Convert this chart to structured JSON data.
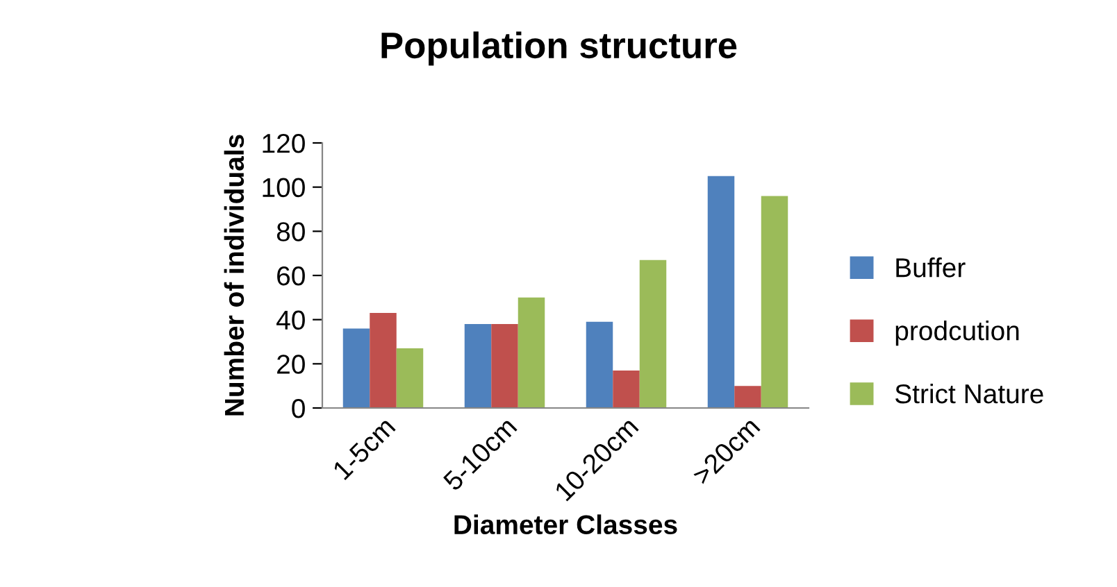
{
  "chart_data": {
    "type": "bar",
    "title": "Population structure",
    "xlabel": "Diameter Classes",
    "ylabel": "Number of individuals",
    "categories": [
      "1-5cm",
      "5-10cm",
      "10-20cm",
      ">20cm"
    ],
    "series": [
      {
        "name": "Buffer",
        "color": "#4f81bd",
        "values": [
          36,
          38,
          39,
          105
        ]
      },
      {
        "name": "prodcution",
        "color": "#c0504d",
        "values": [
          43,
          38,
          17,
          10
        ]
      },
      {
        "name": "Strict Nature",
        "color": "#9bbb59",
        "values": [
          27,
          50,
          67,
          96
        ]
      }
    ],
    "ylim": [
      0,
      120
    ],
    "yticks": [
      0,
      20,
      40,
      60,
      80,
      100,
      120
    ],
    "grid": false,
    "legend": "right"
  }
}
